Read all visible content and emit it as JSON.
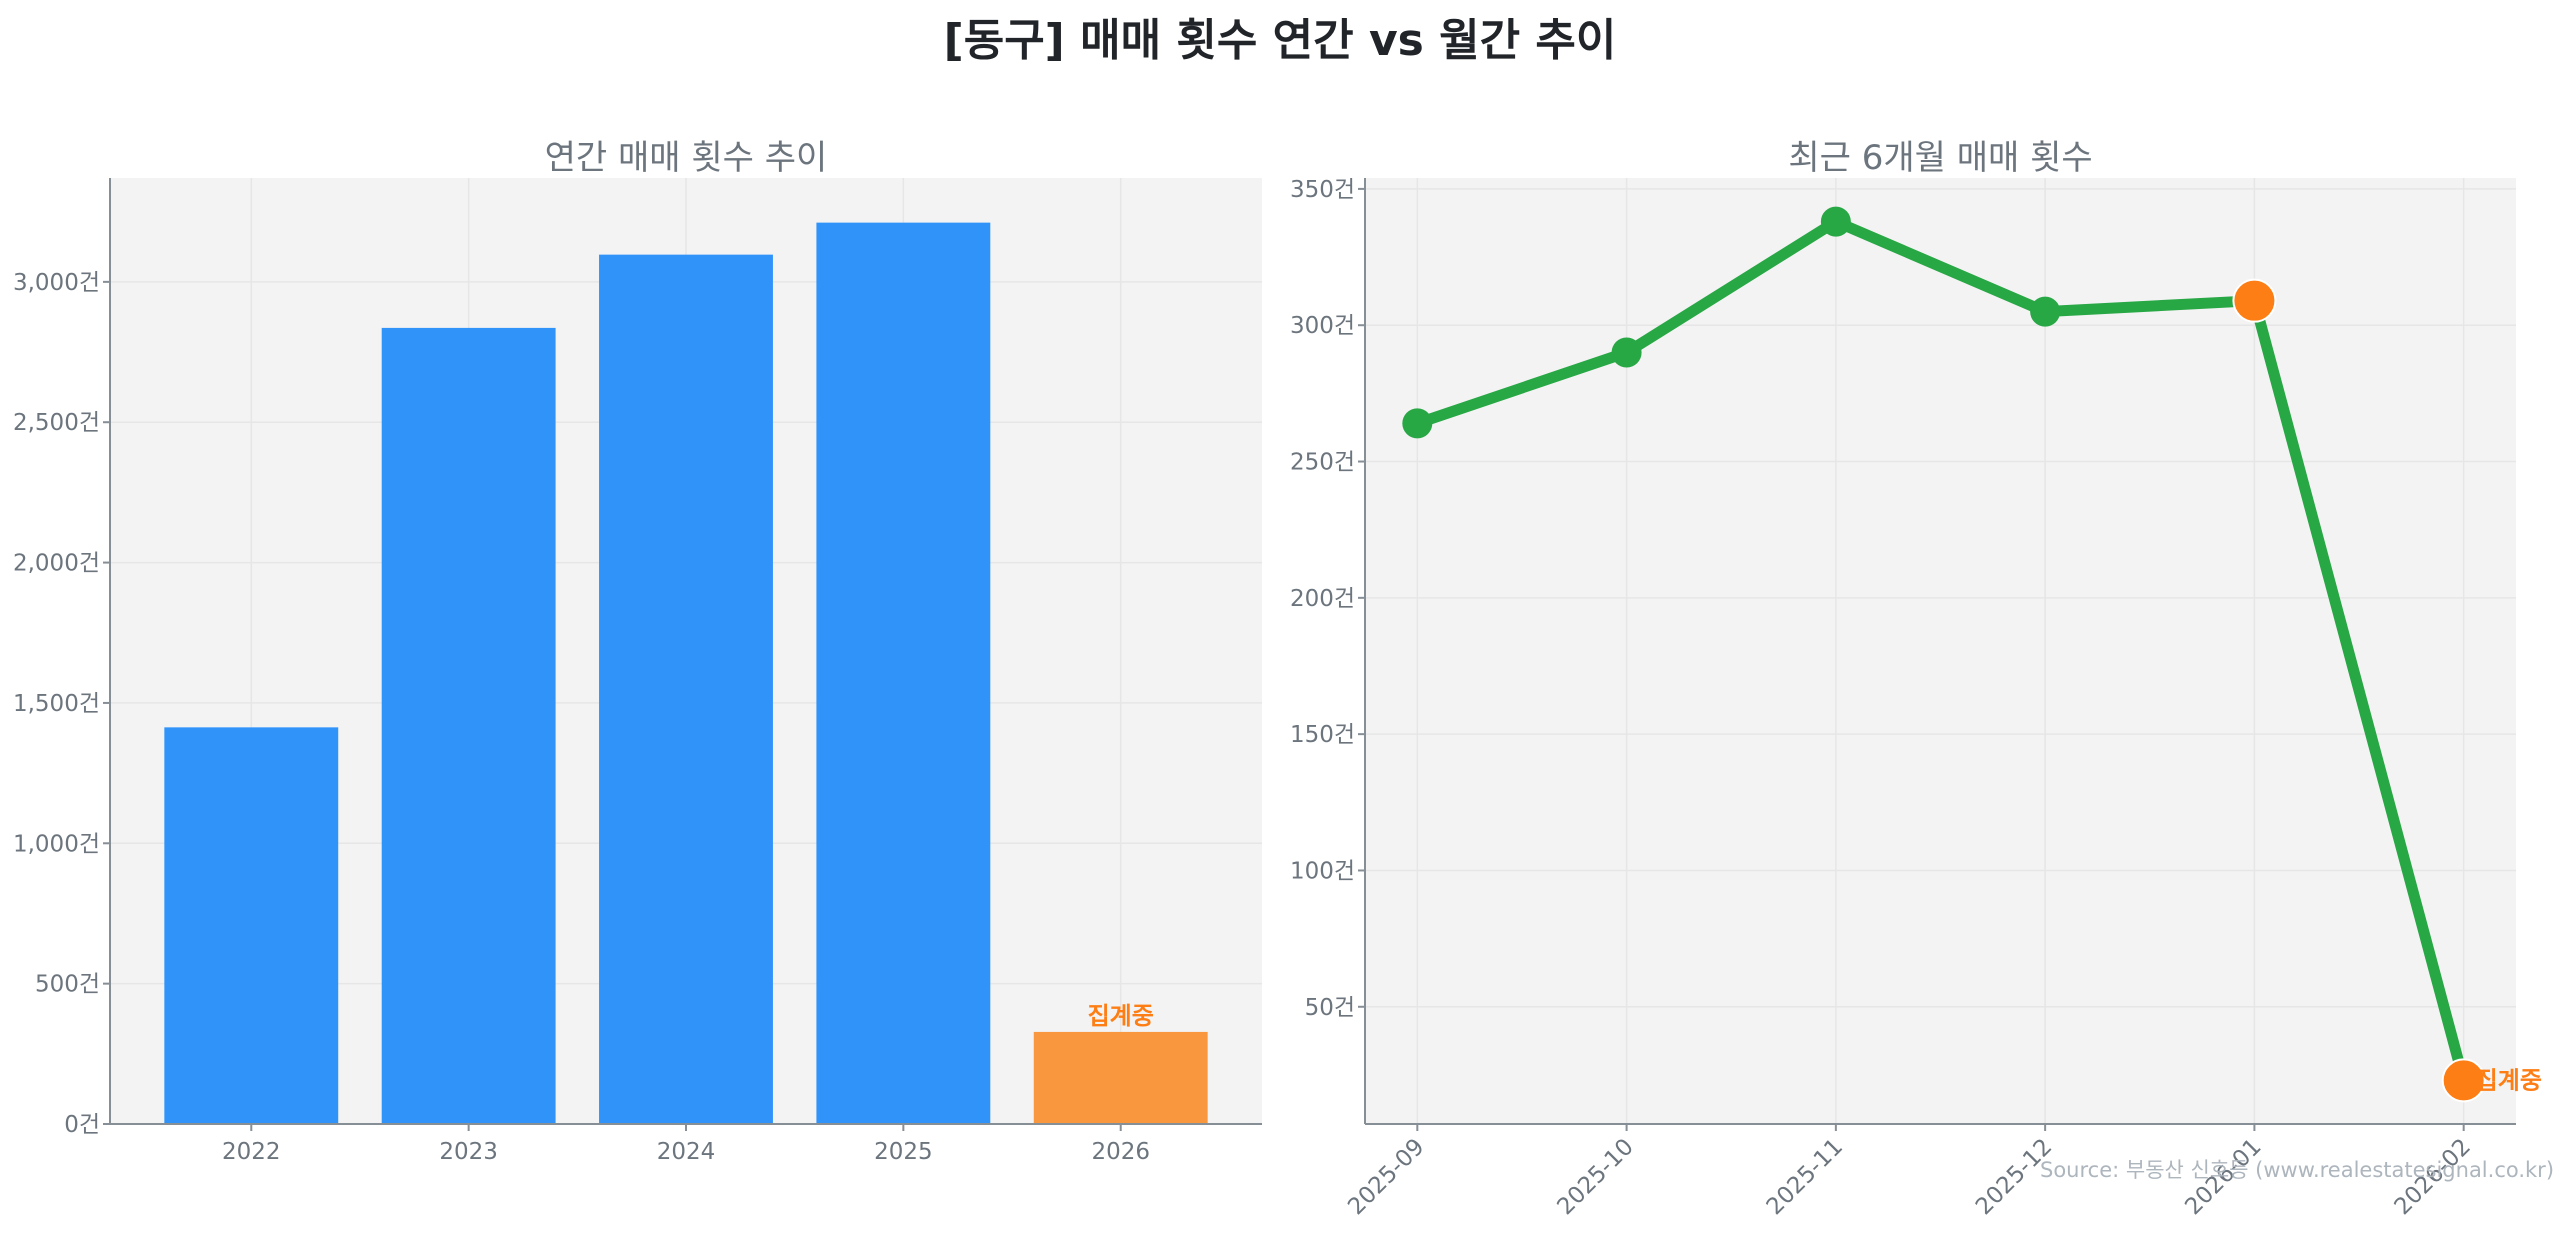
{
  "figure": {
    "title": "[동구] 매매 횟수 연간 vs 월간 추이",
    "source": "Source: 부동산 신호등 (www.realestatesignal.co.kr)",
    "colors": {
      "bar": "#3093fa",
      "bar_partial": "#f9973f",
      "line": "#28a745",
      "marker_partial": "#fd7e14",
      "plot_bg": "#f3f3f3",
      "grid": "#e6e6e6",
      "axis": "#868e96",
      "tick_text": "#6c757d"
    },
    "partial_label": "집계중"
  },
  "chart_data": [
    {
      "type": "bar",
      "title": "연간 매매 횟수 추이",
      "xlabel": "",
      "ylabel": "",
      "categories": [
        "2022",
        "2023",
        "2024",
        "2025",
        "2026"
      ],
      "values": [
        1413,
        2836,
        3097,
        3211,
        328
      ],
      "annotations": [
        {
          "category": "2026",
          "text": "집계중"
        }
      ],
      "ylim": [
        0,
        3370
      ],
      "yticks": [
        0,
        500,
        1000,
        1500,
        2000,
        2500,
        3000
      ],
      "ytick_labels": [
        "0건",
        "500건",
        "1,000건",
        "1,500건",
        "2,000건",
        "2,500건",
        "3,000건"
      ],
      "grid": true
    },
    {
      "type": "line",
      "title": "최근 6개월 매매 횟수",
      "xlabel": "",
      "ylabel": "",
      "x": [
        "2025-09",
        "2025-10",
        "2025-11",
        "2025-12",
        "2026-01",
        "2026-02"
      ],
      "values": [
        264,
        290,
        338,
        305,
        309,
        23
      ],
      "highlighted_points": [
        "2026-01",
        "2026-02"
      ],
      "annotations": [
        {
          "x": "2026-02",
          "text": "집계중"
        }
      ],
      "ylim": [
        7,
        354
      ],
      "yticks": [
        50,
        100,
        150,
        200,
        250,
        300,
        350
      ],
      "ytick_labels": [
        "50건",
        "100건",
        "150건",
        "200건",
        "250건",
        "300건",
        "350건"
      ],
      "grid": true
    }
  ]
}
